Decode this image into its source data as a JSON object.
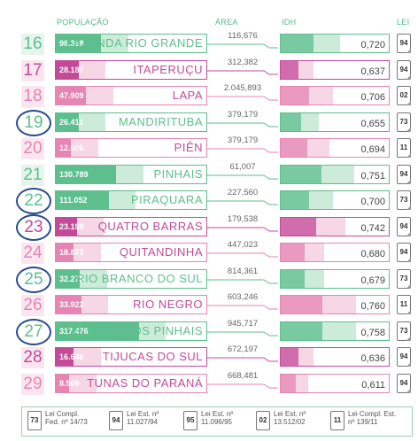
{
  "headers": {
    "populacao": "POPULAÇÃO",
    "area": "ÁREA",
    "idh": "IDH",
    "lei": "LEI"
  },
  "colors": {
    "green": "#5dbf8e",
    "green_light": "#cdebd9",
    "pink": "#e585b3",
    "pink_light": "#f7d6e6",
    "magenta": "#c44a98",
    "ring": "#2a4c8e"
  },
  "rows": [
    {
      "num": "16",
      "pop": "98.368",
      "name": "FAZENDA RIO GRANDE",
      "area": "116,676",
      "idh": "0,720",
      "lei": "94",
      "scheme": "green",
      "pop_level": 0.3,
      "idh_level": 0.55,
      "ring": false
    },
    {
      "num": "17",
      "pop": "28.187",
      "name": "ITAPERUÇU",
      "area": "312,382",
      "idh": "0,637",
      "lei": "94",
      "scheme": "magenta",
      "pop_level": 0.15,
      "idh_level": 0.3,
      "ring": false
    },
    {
      "num": "18",
      "pop": "47.909",
      "name": "LAPA",
      "area": "2.045,893",
      "idh": "0,706",
      "lei": "02",
      "scheme": "pink",
      "pop_level": 0.2,
      "idh_level": 0.48,
      "ring": false
    },
    {
      "num": "19",
      "pop": "26.411",
      "name": "MANDIRITUBA",
      "area": "379,179",
      "idh": "0,655",
      "lei": "73",
      "scheme": "green",
      "pop_level": 0.15,
      "idh_level": 0.35,
      "ring": true
    },
    {
      "num": "20",
      "pop": "12.606",
      "name": "PIÊN",
      "area": "379,179",
      "idh": "0,694",
      "lei": "11",
      "scheme": "pink",
      "pop_level": 0.1,
      "idh_level": 0.45,
      "ring": false
    },
    {
      "num": "21",
      "pop": "130.789",
      "name": "PINHAIS",
      "area": "61,007",
      "idh": "0,751",
      "lei": "94",
      "scheme": "green",
      "pop_level": 0.4,
      "idh_level": 0.68,
      "ring": false
    },
    {
      "num": "22",
      "pop": "111.052",
      "name": "PIRAQUARA",
      "area": "227,560",
      "idh": "0,700",
      "lei": "73",
      "scheme": "green",
      "pop_level": 0.35,
      "idh_level": 0.48,
      "ring": true
    },
    {
      "num": "23",
      "pop": "23.199",
      "name": "QUATRO BARRAS",
      "area": "179,538",
      "idh": "0,742",
      "lei": "94",
      "scheme": "magenta",
      "pop_level": 0.14,
      "idh_level": 0.6,
      "ring": true
    },
    {
      "num": "24",
      "pop": "18.873",
      "name": "QUITANDINHA",
      "area": "447,023",
      "idh": "0,680",
      "lei": "94",
      "scheme": "pink",
      "pop_level": 0.12,
      "idh_level": 0.4,
      "ring": false
    },
    {
      "num": "25",
      "pop": "32.273",
      "name": "RIO BRANCO DO SUL",
      "area": "814,361",
      "idh": "0,679",
      "lei": "73",
      "scheme": "green",
      "pop_level": 0.16,
      "idh_level": 0.4,
      "ring": true
    },
    {
      "num": "26",
      "pop": "33.922",
      "name": "RIO NEGRO",
      "area": "603,246",
      "idh": "0,760",
      "lei": "11",
      "scheme": "pink",
      "pop_level": 0.17,
      "idh_level": 0.7,
      "ring": false
    },
    {
      "num": "27",
      "pop": "317.476",
      "name": "S. JOSÉ DOS PINHAIS",
      "area": "945,717",
      "idh": "0,758",
      "lei": "73",
      "scheme": "green",
      "pop_level": 0.55,
      "idh_level": 0.7,
      "ring": true
    },
    {
      "num": "28",
      "pop": "16.646",
      "name": "TIJUCAS DO SUL",
      "area": "672,197",
      "idh": "0,636",
      "lei": "94",
      "scheme": "magenta",
      "pop_level": 0.12,
      "idh_level": 0.3,
      "ring": false
    },
    {
      "num": "29",
      "pop": "8.509",
      "name": "TUNAS DO PARANÁ",
      "area": "668,481",
      "idh": "0,611",
      "lei": "94",
      "scheme": "pink",
      "pop_level": 0.09,
      "idh_level": 0.25,
      "ring": false
    }
  ],
  "legend": [
    {
      "code": "73",
      "text1": "Lei Compl.",
      "text2": "Fed. nº 14/73"
    },
    {
      "code": "94",
      "text1": "Lei Est. nº",
      "text2": "11.027/94"
    },
    {
      "code": "95",
      "text1": "Lei Est. nº",
      "text2": "11.096/95"
    },
    {
      "code": "02",
      "text1": "Lei Est. nº",
      "text2": "13.512/02"
    },
    {
      "code": "11",
      "text1": "Lei Compl. Est.",
      "text2": "nº 139/11"
    }
  ]
}
